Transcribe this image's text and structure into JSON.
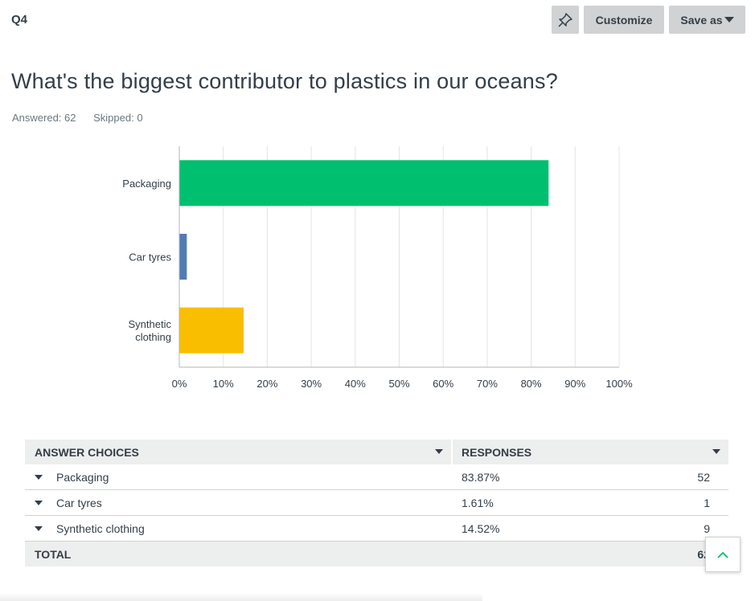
{
  "question_number": "Q4",
  "toolbar": {
    "pin_icon": "pin-icon",
    "customize_label": "Customize",
    "save_as_label": "Save as"
  },
  "question_title": "What's the biggest contributor to plastics in our oceans?",
  "stats": {
    "answered": "Answered: 62",
    "skipped": "Skipped: 0"
  },
  "chart_data": {
    "type": "bar",
    "orientation": "horizontal",
    "categories": [
      "Packaging",
      "Car tyres",
      "Synthetic\nclothing"
    ],
    "values": [
      83.87,
      1.61,
      14.52
    ],
    "colors": [
      "#00bf6f",
      "#507cb6",
      "#f9be00"
    ],
    "x_ticks": [
      "0%",
      "10%",
      "20%",
      "30%",
      "40%",
      "50%",
      "60%",
      "70%",
      "80%",
      "90%",
      "100%"
    ],
    "xlim": [
      0,
      100
    ],
    "grid": true
  },
  "table": {
    "headers": [
      "ANSWER CHOICES",
      "RESPONSES"
    ],
    "rows": [
      {
        "choice": "Packaging",
        "percent": "83.87%",
        "count": "52"
      },
      {
        "choice": "Car tyres",
        "percent": "1.61%",
        "count": "1"
      },
      {
        "choice": "Synthetic clothing",
        "percent": "14.52%",
        "count": "9"
      }
    ],
    "total_label": "TOTAL",
    "total_value": "62"
  },
  "scroll_top_icon": "chevron-up-icon"
}
